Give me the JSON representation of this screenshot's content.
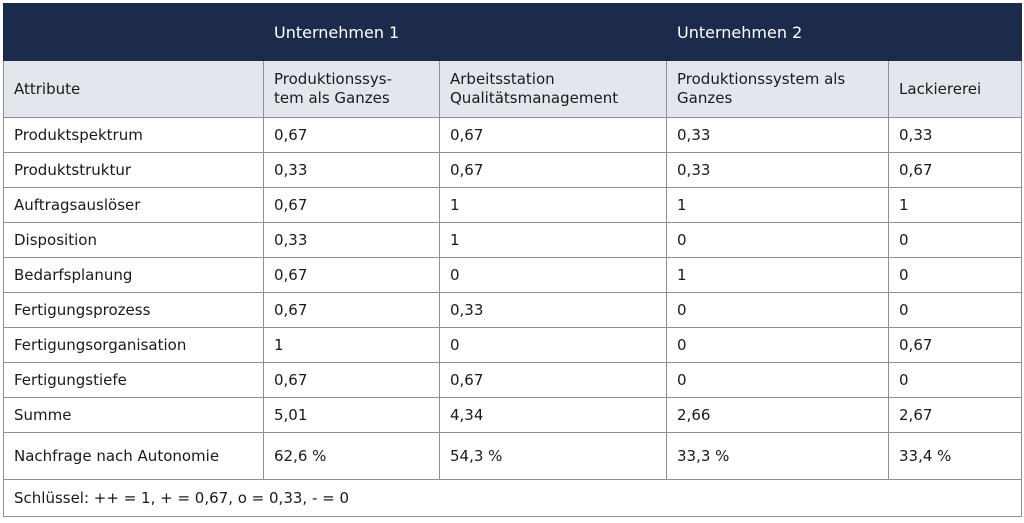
{
  "groups": {
    "company1": "Unternehmen 1",
    "company2": "Unternehmen 2"
  },
  "columns": {
    "attribute": "Attribute",
    "c1_line1": "Produktionssys-",
    "c1_line2": "tem als Ganzes",
    "c2_line1": "Arbeitsstation",
    "c2_line2": "Qualitätsmanagement",
    "c3_line1": "Produktionssystem als",
    "c3_line2": "Ganzes",
    "c4": "Lackiererei"
  },
  "rows": [
    {
      "label": "Produktspektrum",
      "values": [
        "0,67",
        "0,67",
        "0,33",
        "0,33"
      ]
    },
    {
      "label": "Produktstruktur",
      "values": [
        "0,33",
        "0,67",
        "0,33",
        "0,67"
      ]
    },
    {
      "label": "Auftragsauslöser",
      "values": [
        "0,67",
        "1",
        "1",
        "1"
      ]
    },
    {
      "label": "Disposition",
      "values": [
        "0,33",
        "1",
        "0",
        "0"
      ]
    },
    {
      "label": "Bedarfsplanung",
      "values": [
        "0,67",
        "0",
        "1",
        "0"
      ]
    },
    {
      "label": "Fertigungsprozess",
      "values": [
        "0,67",
        "0,33",
        "0",
        "0"
      ]
    },
    {
      "label": "Fertigungsorganisation",
      "values": [
        "1",
        "0",
        "0",
        "0,67"
      ]
    },
    {
      "label": "Fertigungstiefe",
      "values": [
        "0,67",
        "0,67",
        "0",
        "0"
      ]
    },
    {
      "label": "Summe",
      "values": [
        "5,01",
        "4,34",
        "2,66",
        "2,67"
      ]
    },
    {
      "label": "Nachfrage nach Autonomie",
      "values": [
        "62,6 %",
        "54,3 %",
        "33,3 %",
        "33,4 %"
      ]
    }
  ],
  "legend": "Schlüssel: ++ = 1, + = 0,67, o = 0,33, - = 0"
}
